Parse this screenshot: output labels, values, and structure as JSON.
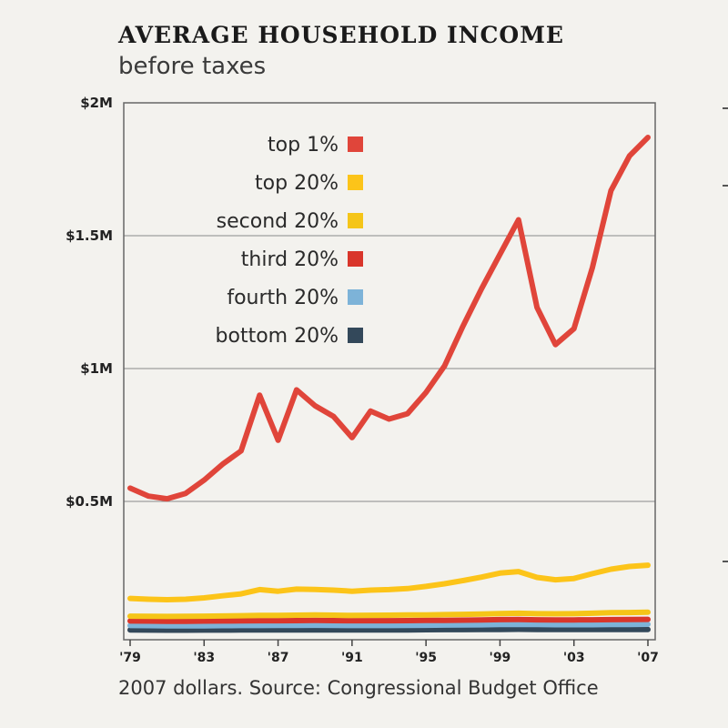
{
  "title": "AVERAGE HOUSEHOLD INCOME",
  "subtitle": "before taxes",
  "source": "2007 dollars. Source: Congressional Budget Office",
  "chart_data": {
    "type": "line",
    "ylim": [
      0,
      2000000
    ],
    "xlim": [
      1979,
      2007
    ],
    "y_ticks": [
      {
        "value": 500000,
        "label": "$0.5M"
      },
      {
        "value": 1000000,
        "label": "$1M"
      },
      {
        "value": 1500000,
        "label": "$1.5M"
      },
      {
        "value": 2000000,
        "label": "$2M"
      }
    ],
    "x_ticks": [
      {
        "value": 1979,
        "label": "'79"
      },
      {
        "value": 1983,
        "label": "'83"
      },
      {
        "value": 1987,
        "label": "'87"
      },
      {
        "value": 1991,
        "label": "'91"
      },
      {
        "value": 1995,
        "label": "'95"
      },
      {
        "value": 1999,
        "label": "'99"
      },
      {
        "value": 2003,
        "label": "'03"
      },
      {
        "value": 2007,
        "label": "'07"
      }
    ],
    "grid": "horizontal",
    "legend_position": "top-left",
    "x": [
      1979,
      1980,
      1981,
      1982,
      1983,
      1984,
      1985,
      1986,
      1987,
      1988,
      1989,
      1990,
      1991,
      1992,
      1993,
      1994,
      1995,
      1996,
      1997,
      1998,
      1999,
      2000,
      2001,
      2002,
      2003,
      2004,
      2005,
      2006,
      2007
    ],
    "series": [
      {
        "name": "top 1%",
        "color": "#e0453a",
        "values": [
          550000,
          520000,
          510000,
          530000,
          580000,
          640000,
          690000,
          900000,
          730000,
          920000,
          860000,
          820000,
          740000,
          840000,
          810000,
          830000,
          910000,
          1010000,
          1160000,
          1300000,
          1430000,
          1560000,
          1230000,
          1090000,
          1150000,
          1380000,
          1670000,
          1800000,
          1870000
        ]
      },
      {
        "name": "top 20%",
        "color": "#fcc419",
        "values": [
          135000,
          132000,
          130000,
          132000,
          137000,
          145000,
          152000,
          168000,
          162000,
          170000,
          169000,
          166000,
          162000,
          166000,
          168000,
          172000,
          180000,
          190000,
          202000,
          215000,
          230000,
          236000,
          214000,
          205000,
          210000,
          228000,
          245000,
          255000,
          260000
        ]
      },
      {
        "name": "second 20%",
        "color": "#f5c518",
        "values": [
          68000,
          67500,
          67000,
          67500,
          68000,
          69000,
          70000,
          71000,
          71000,
          72000,
          72500,
          72000,
          71000,
          71500,
          72000,
          72500,
          73000,
          74000,
          75000,
          76500,
          78000,
          79000,
          77500,
          77000,
          77500,
          79000,
          81000,
          82000,
          83000
        ]
      },
      {
        "name": "third 20%",
        "color": "#d9362b",
        "values": [
          50000,
          49500,
          49000,
          49000,
          49500,
          50000,
          50500,
          51000,
          51000,
          51500,
          52000,
          51500,
          51000,
          51000,
          51000,
          51500,
          52000,
          52500,
          53000,
          54000,
          55000,
          55500,
          54500,
          54000,
          54000,
          54500,
          55000,
          55500,
          56000
        ]
      },
      {
        "name": "fourth 20%",
        "color": "#7db3d8",
        "values": [
          33000,
          32500,
          32000,
          32000,
          32000,
          32500,
          33000,
          33000,
          33500,
          33500,
          34000,
          33500,
          33000,
          33000,
          33000,
          33500,
          34000,
          34500,
          35000,
          35500,
          36500,
          37000,
          36500,
          36000,
          36000,
          36000,
          36500,
          37000,
          37500
        ]
      },
      {
        "name": "bottom 20%",
        "color": "#33485a",
        "values": [
          16000,
          15800,
          15500,
          15500,
          15600,
          15800,
          16000,
          16200,
          16300,
          16500,
          16600,
          16500,
          16300,
          16300,
          16400,
          16600,
          17000,
          17300,
          17600,
          17900,
          18300,
          18700,
          18300,
          18000,
          17900,
          17900,
          18000,
          18100,
          18200
        ]
      }
    ]
  }
}
